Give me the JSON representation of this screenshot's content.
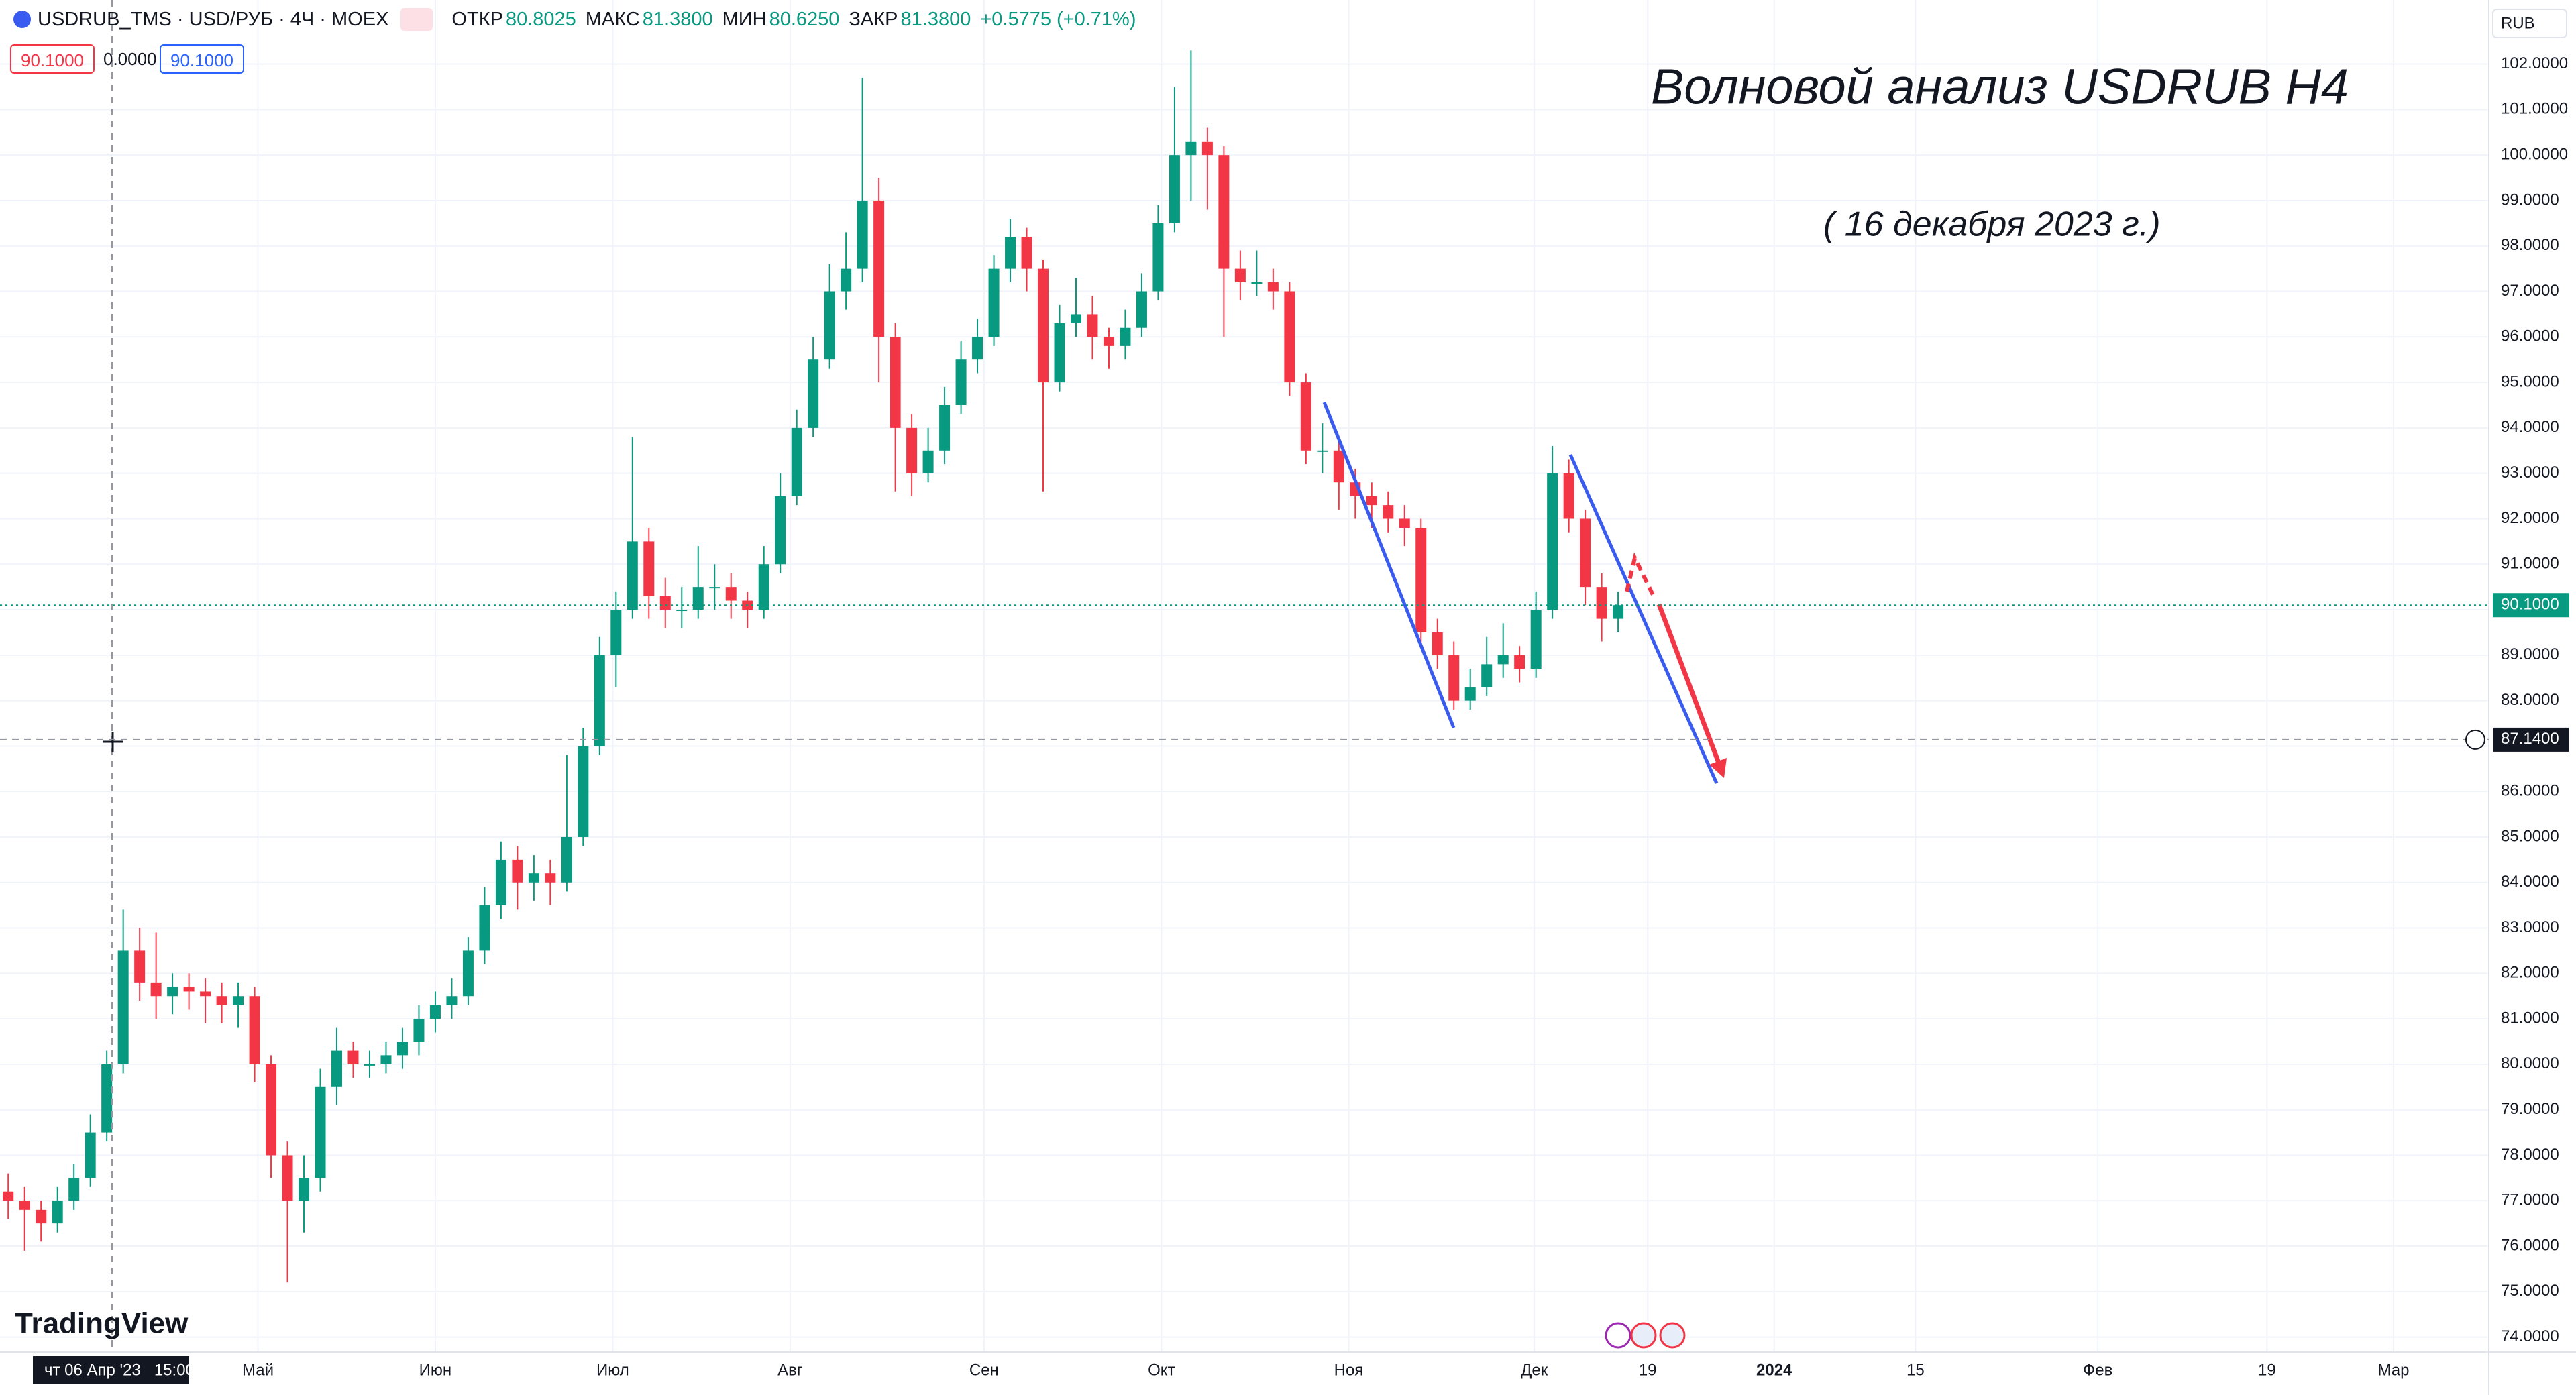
{
  "header": {
    "symbol": "USDRUB_TMS · USD/РУБ · 4Ч · MOEX",
    "open_label": "ОТКР",
    "open": "80.8025",
    "high_label": "МАКС",
    "high": "81.3800",
    "low_label": "МИН",
    "low": "80.6250",
    "close_label": "ЗАКР",
    "close": "81.3800",
    "change": "+0.5775 (+0.71%)"
  },
  "order_panel": {
    "sell": "90.1000",
    "spread": "0.0000",
    "buy": "90.1000"
  },
  "currency": "RUB",
  "logo": "TradingView",
  "chart_data": {
    "type": "candlestick",
    "title": "Волновой анализ USDRUB H4",
    "subtitle": "( 16 декабря 2023 г.)",
    "x": [
      0,
      1,
      2,
      3,
      4,
      5,
      6,
      7,
      8,
      9,
      10,
      11,
      12,
      13,
      14,
      15,
      16,
      17,
      18,
      19,
      20,
      21,
      22,
      23,
      24,
      25,
      26,
      27,
      28,
      29,
      30,
      31,
      32,
      33,
      34,
      35,
      36,
      37,
      38,
      39,
      40,
      41,
      42,
      43,
      44,
      45,
      46,
      47,
      48,
      49,
      50,
      51,
      52,
      53,
      54,
      55,
      56,
      57,
      58,
      59,
      60,
      61,
      62,
      63,
      64,
      65,
      66,
      67,
      68,
      69,
      70,
      71,
      72,
      73,
      74,
      75,
      76,
      77,
      78,
      79,
      80,
      81,
      82,
      83,
      84,
      85,
      86,
      87,
      88,
      89,
      90,
      91,
      92,
      93,
      94,
      95,
      96,
      97,
      98
    ],
    "open": [
      77.2,
      77.0,
      76.8,
      76.5,
      77.0,
      77.5,
      78.5,
      80.0,
      82.5,
      81.8,
      81.5,
      81.7,
      81.6,
      81.5,
      81.3,
      81.5,
      80.0,
      78.0,
      77.0,
      77.5,
      79.5,
      80.3,
      80.0,
      80.0,
      80.2,
      80.5,
      81.0,
      81.3,
      81.5,
      82.5,
      83.5,
      84.5,
      84.0,
      84.2,
      84.0,
      85.0,
      87.0,
      89.0,
      90.0,
      91.5,
      90.3,
      90.0,
      90.0,
      90.5,
      90.5,
      90.2,
      90.0,
      91.0,
      92.5,
      94.0,
      95.5,
      97.0,
      97.5,
      99.0,
      96.0,
      94.0,
      93.0,
      93.5,
      94.5,
      95.5,
      96.0,
      97.5,
      98.2,
      97.5,
      95.0,
      96.3,
      96.5,
      96.0,
      95.8,
      96.2,
      97.0,
      98.5,
      100.0,
      100.3,
      100.0,
      97.5,
      97.2,
      97.2,
      97.0,
      95.0,
      93.5,
      93.5,
      92.8,
      92.5,
      92.3,
      92.0,
      91.8,
      89.5,
      89.0,
      88.0,
      88.3,
      88.8,
      89.0,
      88.7,
      90.0,
      93.0,
      92.0,
      90.5,
      89.8
    ],
    "high": [
      77.6,
      77.3,
      77.0,
      77.3,
      77.8,
      78.9,
      80.3,
      83.4,
      83.0,
      82.9,
      82.0,
      82.0,
      81.9,
      81.8,
      81.8,
      81.7,
      80.2,
      78.3,
      78.0,
      79.9,
      80.8,
      80.5,
      80.3,
      80.5,
      80.8,
      81.3,
      81.6,
      81.9,
      82.8,
      83.9,
      84.9,
      84.8,
      84.6,
      84.5,
      86.8,
      87.4,
      89.4,
      90.4,
      93.8,
      91.8,
      90.7,
      90.5,
      91.4,
      91.0,
      90.8,
      90.4,
      91.4,
      93.0,
      94.4,
      96.0,
      97.6,
      98.3,
      101.7,
      99.5,
      96.3,
      94.3,
      94.0,
      94.9,
      95.9,
      96.4,
      97.8,
      98.6,
      98.4,
      97.7,
      96.7,
      97.3,
      96.9,
      96.2,
      96.6,
      97.4,
      98.9,
      101.5,
      102.3,
      100.6,
      100.2,
      97.9,
      97.9,
      97.5,
      97.2,
      95.2,
      94.1,
      93.8,
      93.1,
      92.8,
      92.6,
      92.3,
      92.0,
      89.8,
      89.3,
      88.7,
      89.4,
      89.7,
      89.2,
      90.4,
      93.6,
      93.3,
      92.2,
      90.8,
      90.4
    ],
    "low": [
      76.6,
      75.9,
      76.1,
      76.3,
      76.8,
      77.3,
      78.3,
      79.8,
      81.4,
      81.0,
      81.1,
      81.2,
      80.9,
      80.9,
      80.8,
      79.6,
      77.5,
      75.2,
      76.3,
      77.2,
      79.1,
      79.7,
      79.7,
      79.8,
      79.9,
      80.2,
      80.7,
      81.0,
      81.3,
      82.2,
      83.2,
      83.4,
      83.6,
      83.5,
      83.8,
      84.8,
      86.8,
      88.3,
      89.8,
      89.8,
      89.6,
      89.6,
      89.8,
      90.0,
      89.8,
      89.6,
      89.8,
      90.8,
      92.3,
      93.8,
      95.3,
      96.6,
      97.2,
      95.0,
      92.6,
      92.5,
      92.8,
      93.2,
      94.3,
      95.2,
      95.8,
      97.2,
      97.0,
      92.6,
      94.8,
      96.0,
      95.5,
      95.3,
      95.5,
      96.0,
      96.8,
      98.3,
      99.0,
      98.8,
      96.0,
      96.8,
      96.9,
      96.6,
      94.7,
      93.2,
      93.0,
      92.2,
      92.0,
      91.8,
      91.7,
      91.4,
      89.2,
      88.7,
      87.8,
      87.8,
      88.1,
      88.5,
      88.4,
      88.5,
      89.8,
      91.7,
      90.1,
      89.3,
      89.5
    ],
    "close": [
      77.0,
      76.8,
      76.5,
      77.0,
      77.5,
      78.5,
      80.0,
      82.5,
      81.8,
      81.5,
      81.7,
      81.6,
      81.5,
      81.3,
      81.5,
      80.0,
      78.0,
      77.0,
      77.5,
      79.5,
      80.3,
      80.0,
      80.0,
      80.2,
      80.5,
      81.0,
      81.3,
      81.5,
      82.5,
      83.5,
      84.5,
      84.0,
      84.2,
      84.0,
      85.0,
      87.0,
      89.0,
      90.0,
      91.5,
      90.3,
      90.0,
      90.0,
      90.5,
      90.5,
      90.2,
      90.0,
      91.0,
      92.5,
      94.0,
      95.5,
      97.0,
      97.5,
      99.0,
      96.0,
      94.0,
      93.0,
      93.5,
      94.5,
      95.5,
      96.0,
      97.5,
      98.2,
      97.5,
      95.0,
      96.3,
      96.5,
      96.0,
      95.8,
      96.2,
      97.0,
      98.5,
      100.0,
      100.3,
      100.0,
      97.5,
      97.2,
      97.2,
      97.0,
      95.0,
      93.5,
      93.5,
      92.8,
      92.5,
      92.3,
      92.0,
      91.8,
      89.5,
      89.0,
      88.0,
      88.3,
      88.8,
      89.0,
      88.7,
      90.0,
      93.0,
      92.0,
      90.5,
      89.8,
      90.1
    ],
    "xlim": [
      -0.5,
      151
    ],
    "ylim": [
      73.67,
      103.41
    ],
    "xticks": [
      {
        "value": 15.2,
        "label": "Май"
      },
      {
        "value": 26,
        "label": "Июн"
      },
      {
        "value": 36.8,
        "label": "Июл"
      },
      {
        "value": 47.6,
        "label": "Авг"
      },
      {
        "value": 59.4,
        "label": "Сен"
      },
      {
        "value": 70.2,
        "label": "Окт"
      },
      {
        "value": 81.6,
        "label": "Ноя"
      },
      {
        "value": 92.9,
        "label": "Дек"
      },
      {
        "value": 99.8,
        "label": "19"
      },
      {
        "value": 107.5,
        "label": "2024"
      },
      {
        "value": 116.1,
        "label": "15"
      },
      {
        "value": 127.2,
        "label": "Фев"
      },
      {
        "value": 137.5,
        "label": "19"
      },
      {
        "value": 145.2,
        "label": "Мар"
      }
    ],
    "yticks": [
      {
        "value": 74,
        "label": "74.0000"
      },
      {
        "value": 75,
        "label": "75.0000"
      },
      {
        "value": 76,
        "label": "76.0000"
      },
      {
        "value": 77,
        "label": "77.0000"
      },
      {
        "value": 78,
        "label": "78.0000"
      },
      {
        "value": 79,
        "label": "79.0000"
      },
      {
        "value": 80,
        "label": "80.0000"
      },
      {
        "value": 81,
        "label": "81.0000"
      },
      {
        "value": 82,
        "label": "82.0000"
      },
      {
        "value": 83,
        "label": "83.0000"
      },
      {
        "value": 84,
        "label": "84.0000"
      },
      {
        "value": 85,
        "label": "85.0000"
      },
      {
        "value": 86,
        "label": "86.0000"
      },
      {
        "value": 87,
        "label": "87.0000"
      },
      {
        "value": 88,
        "label": "88.0000"
      },
      {
        "value": 89,
        "label": "89.0000"
      },
      {
        "value": 90,
        "label": "90.0000"
      },
      {
        "value": 91,
        "label": "91.0000"
      },
      {
        "value": 92,
        "label": "92.0000"
      },
      {
        "value": 93,
        "label": "93.0000"
      },
      {
        "value": 94,
        "label": "94.0000"
      },
      {
        "value": 95,
        "label": "95.0000"
      },
      {
        "value": 96,
        "label": "96.0000"
      },
      {
        "value": 97,
        "label": "97.0000"
      },
      {
        "value": 98,
        "label": "98.0000"
      },
      {
        "value": 99,
        "label": "99.0000"
      },
      {
        "value": 100,
        "label": "100.0000"
      },
      {
        "value": 101,
        "label": "101.0000"
      },
      {
        "value": 102,
        "label": "102.0000"
      }
    ],
    "grid": true,
    "up_color": "#089981",
    "down_color": "#f23645",
    "last_price": {
      "value": 90.1,
      "label": "90.1000"
    },
    "crosshair": {
      "value": 87.14,
      "label": "87.1400",
      "time_label": "чт 06 Апр '23   15:00"
    }
  }
}
